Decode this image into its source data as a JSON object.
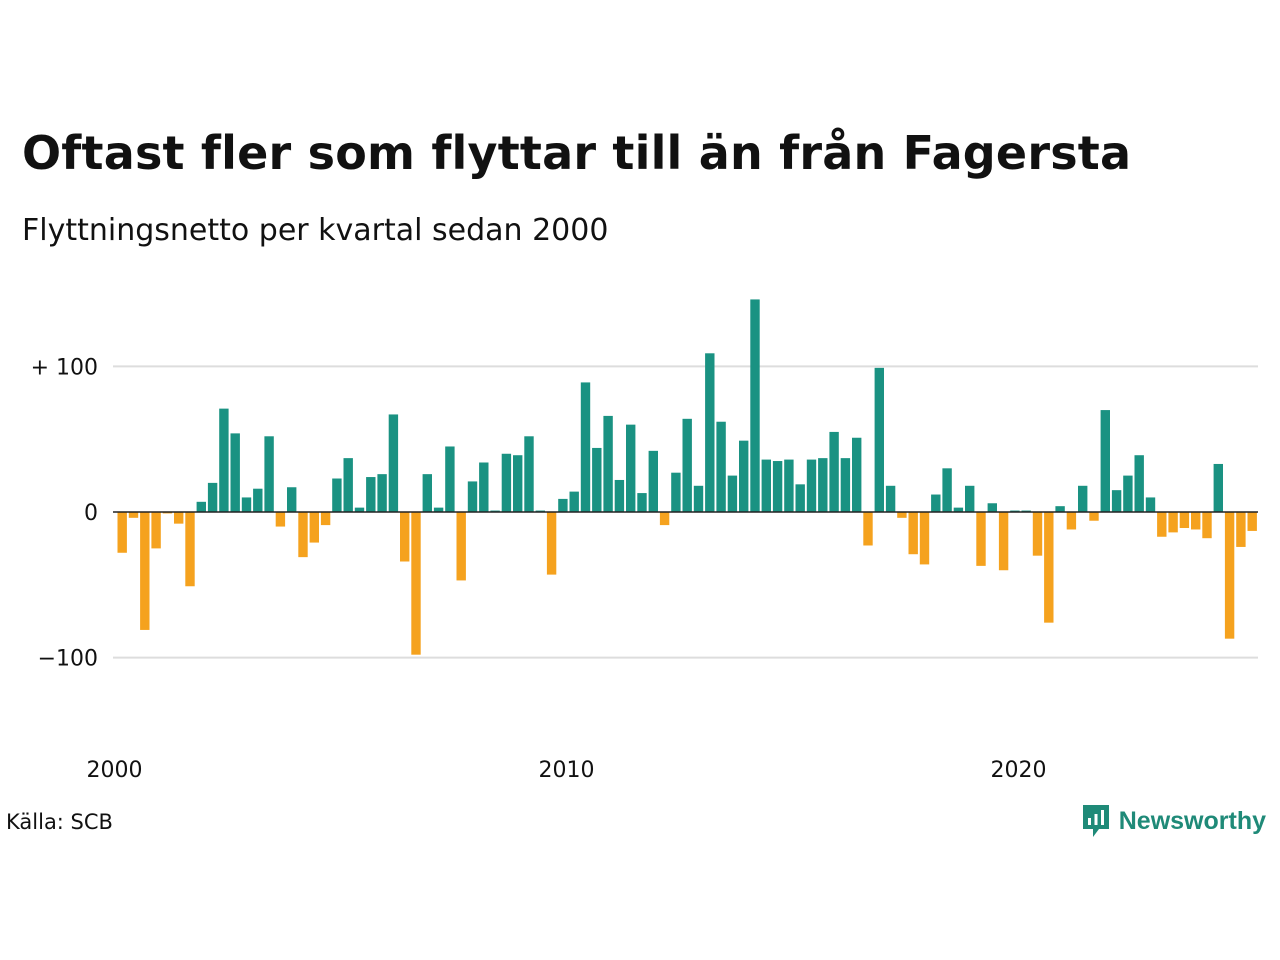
{
  "title": "Oftast fler som flyttar till än från Fagersta",
  "subtitle": "Flyttningsnetto per kvartal sedan 2000",
  "source": "Källa: SCB",
  "brand": {
    "name": "Newsworthy",
    "icon": "newsworthy-bar-chart-icon"
  },
  "colors": {
    "positive": "#1a9282",
    "negative": "#f5a21e",
    "grid": "#dddddd",
    "baseline": "#222222"
  },
  "chart_data": {
    "type": "bar",
    "start_year": 2000,
    "periods_per_year": 4,
    "x_tick_labels": [
      {
        "year": 2000,
        "label": "2000"
      },
      {
        "year": 2010,
        "label": "2010"
      },
      {
        "year": 2020,
        "label": "2020"
      }
    ],
    "y_ticks": [
      {
        "value": 100,
        "label": "+ 100"
      },
      {
        "value": 0,
        "label": "0"
      },
      {
        "value": -100,
        "label": "−100"
      }
    ],
    "ylim": [
      -100,
      148
    ],
    "grid": true,
    "values": [
      -28,
      -4,
      -81,
      -25,
      -1,
      -8,
      -51,
      7,
      20,
      71,
      54,
      10,
      16,
      52,
      -10,
      17,
      -31,
      -21,
      -9,
      23,
      37,
      3,
      24,
      26,
      67,
      -34,
      -98,
      26,
      3,
      45,
      -47,
      21,
      34,
      1,
      40,
      39,
      52,
      1,
      -43,
      9,
      14,
      89,
      44,
      66,
      22,
      60,
      13,
      42,
      -9,
      27,
      64,
      18,
      109,
      62,
      25,
      49,
      146,
      36,
      35,
      36,
      19,
      36,
      37,
      55,
      37,
      51,
      -23,
      99,
      18,
      -4,
      -29,
      -36,
      12,
      30,
      3,
      18,
      -37,
      6,
      -40,
      1,
      1,
      -30,
      -76,
      4,
      -12,
      18,
      -6,
      70,
      15,
      25,
      39,
      10,
      -17,
      -14,
      -11,
      -12,
      -18,
      33,
      -87,
      -24,
      -13
    ]
  }
}
